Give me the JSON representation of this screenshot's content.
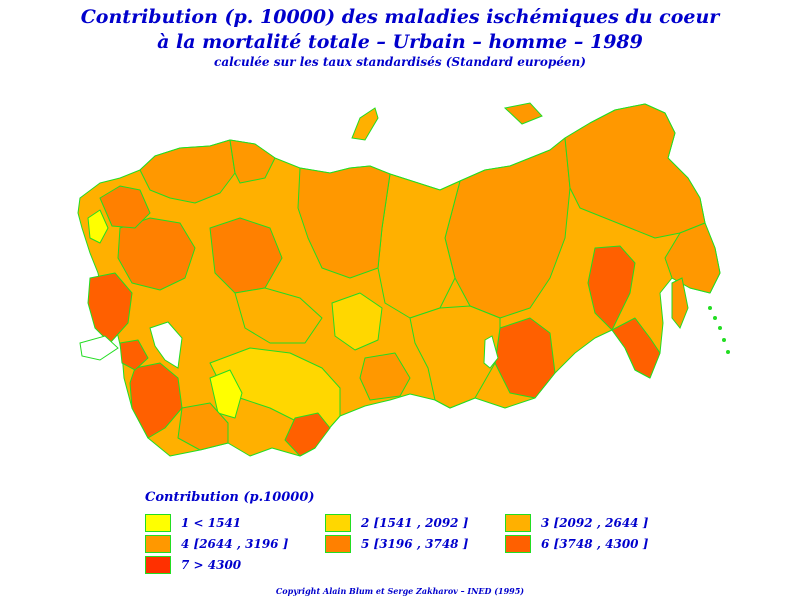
{
  "title": {
    "line1": "Contribution (p. 10000) des maladies ischémiques du coeur",
    "line2": "à la mortalité totale – Urbain – homme – 1989",
    "subtitle": "calculée sur les taux standardisés (Standard européen)"
  },
  "legend": {
    "title": "Contribution (p.10000)",
    "items": [
      {
        "label": "1  <  1541",
        "color": "#ffff00"
      },
      {
        "label": "2  [1541 ,  2092 ]",
        "color": "#ffd700"
      },
      {
        "label": "3  [2092 ,  2644 ]",
        "color": "#ffb000"
      },
      {
        "label": "4  [2644 ,  3196 ]",
        "color": "#ff9800"
      },
      {
        "label": "5  [3196 ,  3748 ]",
        "color": "#ff8000"
      },
      {
        "label": "6  [3748 ,  4300 ]",
        "color": "#ff6000"
      },
      {
        "label": "7  >  4300",
        "color": "#ff3000"
      }
    ]
  },
  "colors": {
    "text": "#0000cc",
    "border": "#22dd22"
  },
  "copyright": "Copyright Alain Blum et Serge Zakharov – INED (1995)"
}
